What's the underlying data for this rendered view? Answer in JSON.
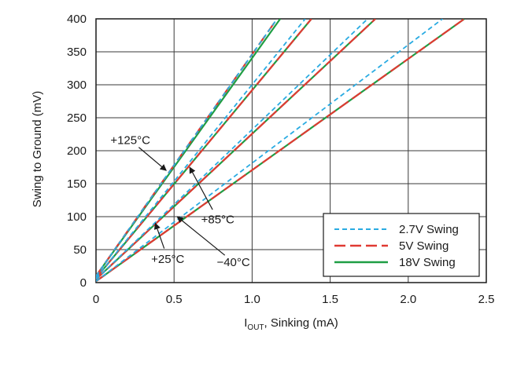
{
  "chart_data": {
    "type": "line",
    "title": "",
    "xlabel": {
      "main": "I",
      "sub": "OUT",
      "rest": ", Sinking (mA)"
    },
    "ylabel": "Swing to Ground (mV)",
    "xlim": [
      0,
      2.5
    ],
    "ylim": [
      0,
      400
    ],
    "x_ticks": [
      0,
      0.5,
      1.0,
      1.5,
      2.0,
      2.5
    ],
    "x_tick_labels": [
      "0",
      "0.5",
      "1.0",
      "1.5",
      "2.0",
      "2.5"
    ],
    "y_ticks": [
      0,
      50,
      100,
      150,
      200,
      250,
      300,
      350,
      400
    ],
    "y_tick_labels": [
      "0",
      "50",
      "100",
      "150",
      "200",
      "250",
      "300",
      "350",
      "400"
    ],
    "grid": true,
    "legend_position": "bottom-right",
    "legend": [
      {
        "label": "2.7V Swing",
        "color": "#29abe2",
        "dash": "dashed"
      },
      {
        "label": "5V Swing",
        "color": "#e03a32",
        "dash": "long-dashed"
      },
      {
        "label": "18V Swing",
        "color": "#1e9e44",
        "dash": "solid"
      }
    ],
    "temperature_groups": [
      {
        "temperature": "+125°C",
        "series": [
          {
            "style": "2.7V Swing",
            "x": [
              0,
              1.16
            ],
            "y": [
              10,
              400
            ]
          },
          {
            "style": "5V Swing",
            "x": [
              0,
              1.16
            ],
            "y": [
              10,
              400
            ]
          },
          {
            "style": "18V Swing",
            "x": [
              0,
              1.18
            ],
            "y": [
              10,
              400
            ]
          }
        ]
      },
      {
        "temperature": "+85°C",
        "series": [
          {
            "style": "2.7V Swing",
            "x": [
              0,
              1.34
            ],
            "y": [
              7,
              400
            ]
          },
          {
            "style": "5V Swing",
            "x": [
              0,
              1.38
            ],
            "y": [
              7,
              400
            ]
          },
          {
            "style": "18V Swing",
            "x": [
              0,
              1.38
            ],
            "y": [
              7,
              400
            ]
          }
        ]
      },
      {
        "temperature": "+25°C",
        "series": [
          {
            "style": "2.7V Swing",
            "x": [
              0,
              1.74
            ],
            "y": [
              5,
              400
            ]
          },
          {
            "style": "5V Swing",
            "x": [
              0,
              1.79
            ],
            "y": [
              5,
              400
            ]
          },
          {
            "style": "18V Swing",
            "x": [
              0,
              1.79
            ],
            "y": [
              5,
              400
            ]
          }
        ]
      },
      {
        "temperature": "−40°C",
        "series": [
          {
            "style": "2.7V Swing",
            "x": [
              0,
              2.22
            ],
            "y": [
              2,
              400
            ]
          },
          {
            "style": "5V Swing",
            "x": [
              0,
              2.36
            ],
            "y": [
              2,
              400
            ]
          },
          {
            "style": "18V Swing",
            "x": [
              0,
              2.36
            ],
            "y": [
              2,
              400
            ]
          }
        ]
      }
    ],
    "annotations": [
      {
        "text": "+125°C",
        "x": 0.22,
        "y": 210,
        "arrow_to": [
          0.45,
          170
        ]
      },
      {
        "text": "+85°C",
        "x": 0.78,
        "y": 90,
        "arrow_to": [
          0.6,
          175
        ]
      },
      {
        "text": "+25°C",
        "x": 0.46,
        "y": 30,
        "arrow_to": [
          0.38,
          90
        ]
      },
      {
        "text": "−40°C",
        "x": 0.88,
        "y": 25,
        "arrow_to": [
          0.52,
          100
        ]
      }
    ]
  }
}
